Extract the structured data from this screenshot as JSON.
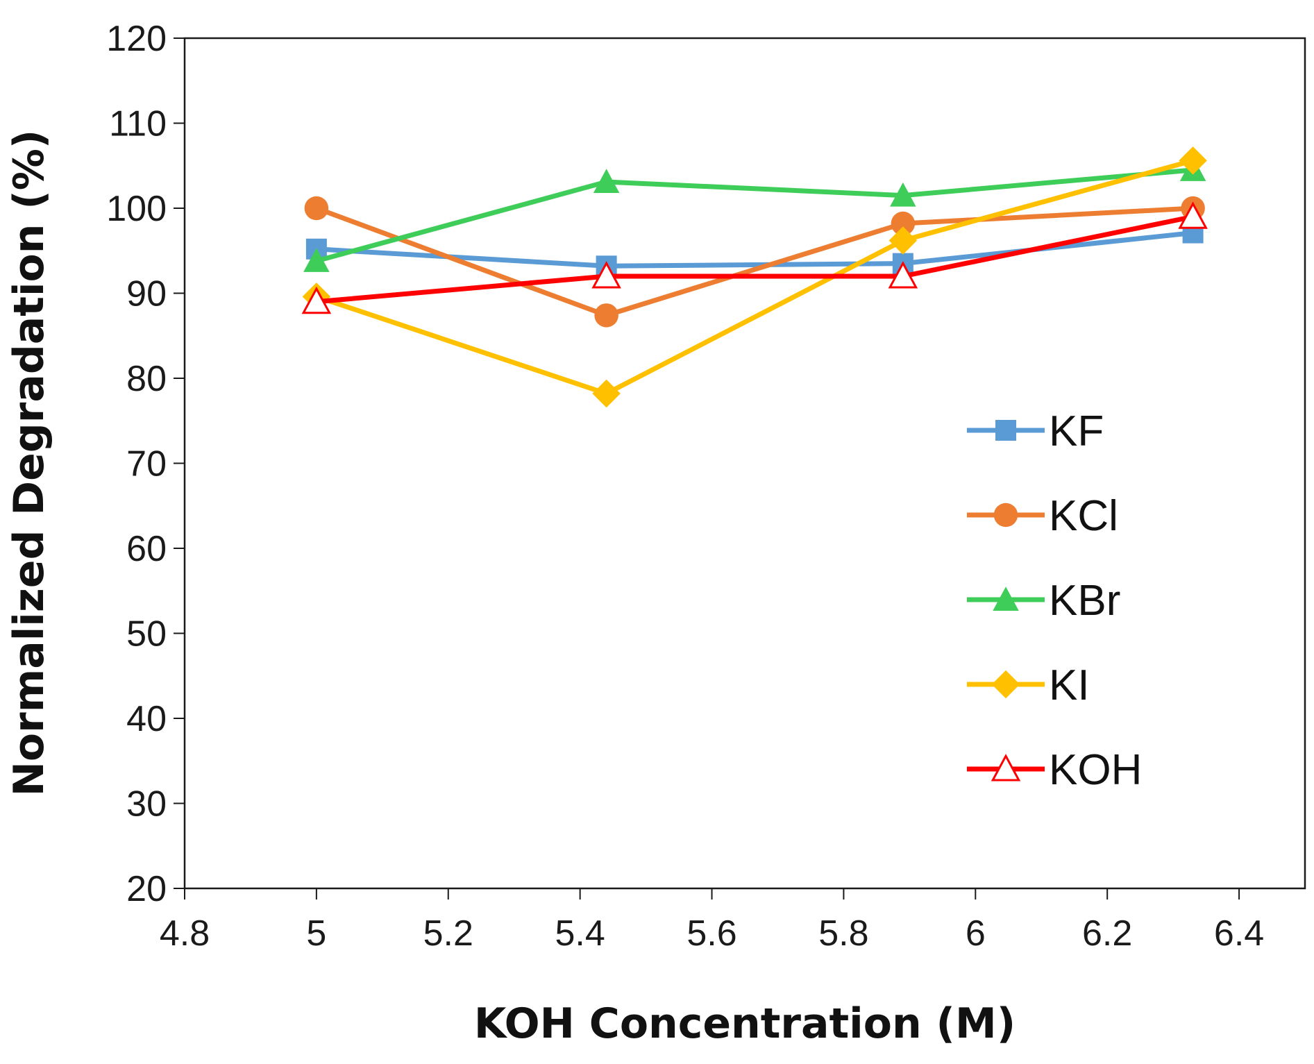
{
  "chart_data": {
    "type": "line",
    "title": "",
    "xlabel": "KOH Concentration (M)",
    "ylabel": "Normalized Degradation (%)",
    "xlim": [
      4.8,
      6.5
    ],
    "ylim": [
      20,
      120
    ],
    "xticks": [
      4.8,
      5,
      5.2,
      5.4,
      5.6,
      5.8,
      6,
      6.2,
      6.4
    ],
    "xtick_labels": [
      "4.8",
      "5",
      "5.2",
      "5.4",
      "5.6",
      "5.8",
      "6",
      "6.2",
      "6.4"
    ],
    "yticks": [
      20,
      30,
      40,
      50,
      60,
      70,
      80,
      90,
      100,
      110,
      120
    ],
    "ytick_labels": [
      "20",
      "30",
      "40",
      "50",
      "60",
      "70",
      "80",
      "90",
      "100",
      "110",
      "120"
    ],
    "grid": false,
    "legend_position": "right",
    "x": [
      5.0,
      5.44,
      5.89,
      6.33
    ],
    "series": [
      {
        "name": "KF",
        "color": "#5B9BD5",
        "marker": "square",
        "values": [
          95.2,
          93.2,
          93.5,
          97.1
        ]
      },
      {
        "name": "KCl",
        "color": "#ED7D31",
        "marker": "circle",
        "values": [
          100.0,
          87.4,
          98.2,
          100.0
        ]
      },
      {
        "name": "KBr",
        "color": "#3DCD58",
        "marker": "triangle",
        "values": [
          93.8,
          103.1,
          101.5,
          104.5
        ]
      },
      {
        "name": "KI",
        "color": "#FFC000",
        "marker": "diamond",
        "values": [
          89.6,
          78.2,
          96.2,
          105.6
        ]
      },
      {
        "name": "KOH",
        "color": "#FF0000",
        "marker": "triangle-open",
        "values": [
          89.0,
          92.0,
          92.0,
          99.0
        ]
      }
    ]
  }
}
